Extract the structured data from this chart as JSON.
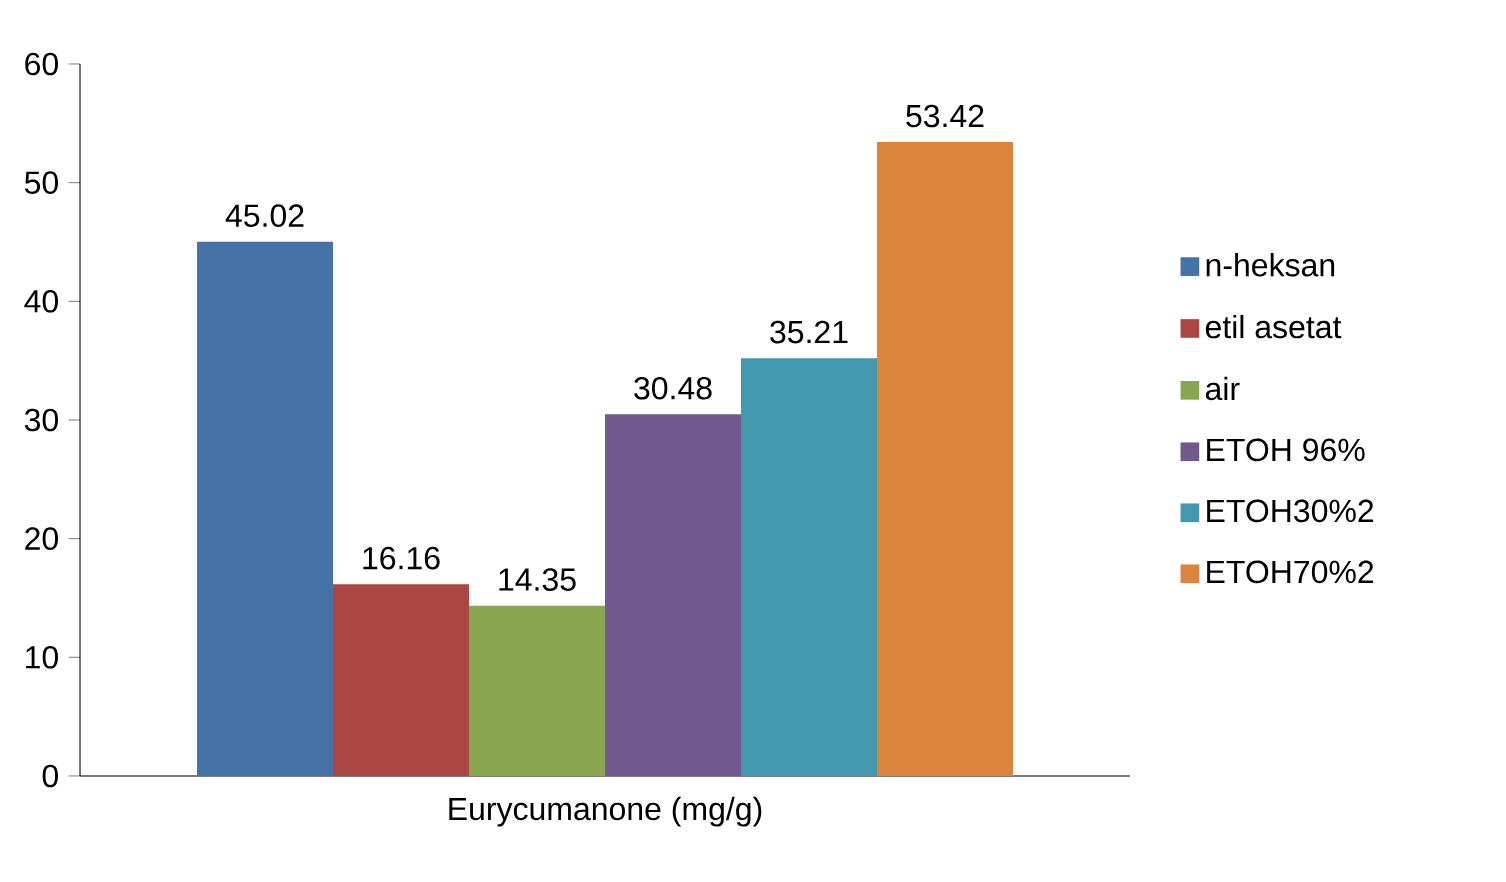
{
  "chart_data": {
    "type": "bar",
    "categories": [
      "Eurycumanone (mg/g)"
    ],
    "series": [
      {
        "name": "n-heksan",
        "color": "#4572a7",
        "values": [
          45.02
        ]
      },
      {
        "name": "etil asetat",
        "color": "#aa4643",
        "values": [
          16.16
        ]
      },
      {
        "name": "air",
        "color": "#89a54e",
        "values": [
          14.35
        ]
      },
      {
        "name": "ETOH 96%",
        "color": "#71588f",
        "values": [
          30.48
        ]
      },
      {
        "name": "ETOH30%2",
        "color": "#4198af",
        "values": [
          35.21
        ]
      },
      {
        "name": "ETOH70%2",
        "color": "#db843d",
        "values": [
          53.42
        ]
      }
    ],
    "ylim": [
      0,
      60
    ],
    "yticks": [
      0,
      10,
      20,
      30,
      40,
      50,
      60
    ],
    "data_labels": true,
    "legend": "right",
    "grid": false
  }
}
